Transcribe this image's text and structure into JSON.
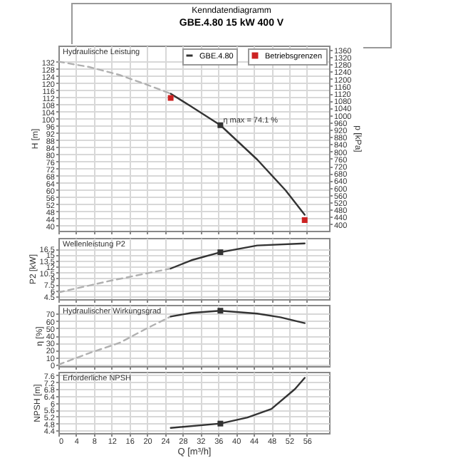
{
  "chart_data": [
    {
      "type": "line",
      "title": "Kenndatendiagramm",
      "subtitle": "GBE.4.80     15 kW     400 V",
      "ylabel": "H [m]",
      "y2label": "p [kPa]",
      "xlim": [
        0,
        61
      ],
      "xticks": [
        0,
        4,
        8,
        12,
        16,
        20,
        24,
        28,
        32,
        36,
        40,
        44,
        48,
        52,
        56
      ],
      "ylim": [
        37,
        141
      ],
      "yticks": [
        40,
        44,
        48,
        52,
        56,
        60,
        64,
        68,
        72,
        76,
        80,
        84,
        88,
        92,
        96,
        100,
        104,
        108,
        112,
        116,
        120,
        124,
        128,
        132
      ],
      "y2lim": [
        363,
        1383
      ],
      "y2ticks": [
        400,
        440,
        480,
        520,
        560,
        600,
        640,
        680,
        720,
        760,
        800,
        840,
        880,
        920,
        960,
        1000,
        1040,
        1080,
        1120,
        1160,
        1200,
        1240,
        1280,
        1320,
        1360
      ],
      "tick_labels": "y",
      "grid": true,
      "legend": "top right",
      "series": [
        {
          "color": "#b0b0b0",
          "line_style": "dashed",
          "x": [
            0,
            6.9,
            13.8,
            20,
            25.3
          ],
          "values": [
            132,
            129,
            124.5,
            119,
            114
          ]
        },
        {
          "name": "GBE.4.80",
          "color": "#333333",
          "x": [
            25.3,
            29.8,
            36.5,
            44.8,
            51.2,
            55.5
          ],
          "values": [
            114,
            107,
            96.3,
            77,
            59.7,
            46
          ]
        },
        {
          "type": "scatter",
          "marker": "square",
          "color": "#333333",
          "x": [
            36.5
          ],
          "values": [
            96.3
          ]
        },
        {
          "type": "scatter",
          "marker": "square",
          "name": "Betriebsgrenzen",
          "color": "#cc2222",
          "x": [
            25.3,
            55.5
          ],
          "values": [
            111.6,
            43
          ]
        }
      ],
      "annotations": [
        "Hydraulische Leistung",
        {
          "text": "η max = 74.1 %",
          "x": 36.5,
          "y": 96.3
        }
      ]
    },
    {
      "type": "line",
      "title": "Wellenleistung P2",
      "ylabel": "P2 [kW]",
      "xlim": [
        0,
        61
      ],
      "xticks": [
        0,
        4,
        8,
        12,
        16,
        20,
        24,
        28,
        32,
        36,
        40,
        44,
        48,
        52,
        56
      ],
      "ylim": [
        3.8,
        19.2
      ],
      "yticks": [
        4.5,
        6,
        7.5,
        9,
        10.5,
        12,
        13.5,
        15,
        16.5
      ],
      "tick_labels": "y",
      "grid": true,
      "series": [
        {
          "color": "#b0b0b0",
          "line_style": "dashed",
          "x": [
            0,
            12,
            25.3
          ],
          "values": [
            5.5,
            8.5,
            11.5
          ]
        },
        {
          "color": "#333333",
          "x": [
            25.3,
            30,
            36.5,
            44.8,
            55.5
          ],
          "values": [
            11.5,
            13.6,
            15.6,
            17.3,
            17.8
          ]
        },
        {
          "type": "scatter",
          "marker": "square",
          "color": "#333333",
          "x": [
            36.5
          ],
          "values": [
            15.6
          ]
        }
      ]
    },
    {
      "type": "line",
      "title": "Hydraulischer Wirkungsgrad",
      "ylabel": "η [%]",
      "xlim": [
        0,
        61
      ],
      "xticks": [
        0,
        4,
        8,
        12,
        16,
        20,
        24,
        28,
        32,
        36,
        40,
        44,
        48,
        52,
        56
      ],
      "ylim": [
        -2,
        82
      ],
      "yticks": [
        0,
        10,
        20,
        30,
        40,
        50,
        60,
        70
      ],
      "tick_labels": "y",
      "grid": true,
      "series": [
        {
          "color": "#b0b0b0",
          "line_style": "dashed",
          "x": [
            0,
            7,
            13.8,
            20,
            25.3
          ],
          "values": [
            0,
            16,
            30,
            50,
            66
          ]
        },
        {
          "color": "#333333",
          "x": [
            25.3,
            30,
            36.5,
            44.8,
            50,
            55.5
          ],
          "values": [
            66,
            71,
            74,
            70,
            65,
            57
          ]
        },
        {
          "type": "scatter",
          "marker": "square",
          "color": "#333333",
          "x": [
            36.5
          ],
          "values": [
            74
          ]
        }
      ]
    },
    {
      "type": "line",
      "title": "Erforderliche NPSH",
      "ylabel": "NPSH [m]",
      "xlabel": "Q [m³/h]",
      "xlim": [
        0,
        61
      ],
      "xticks": [
        0,
        4,
        8,
        12,
        16,
        20,
        24,
        28,
        32,
        36,
        40,
        44,
        48,
        52,
        56
      ],
      "ylim": [
        4.25,
        7.8
      ],
      "yticks": [
        4.4,
        4.8,
        5.2,
        5.6,
        6,
        6.4,
        6.8,
        7.2,
        7.6
      ],
      "grid": true,
      "series": [
        {
          "color": "#333333",
          "x": [
            25.3,
            36.5,
            42.6,
            48,
            53.3,
            55.5
          ],
          "values": [
            4.55,
            4.8,
            5.15,
            5.65,
            6.8,
            7.45
          ]
        },
        {
          "type": "scatter",
          "marker": "square",
          "color": "#333333",
          "x": [
            36.5
          ],
          "values": [
            4.8
          ]
        }
      ]
    }
  ]
}
